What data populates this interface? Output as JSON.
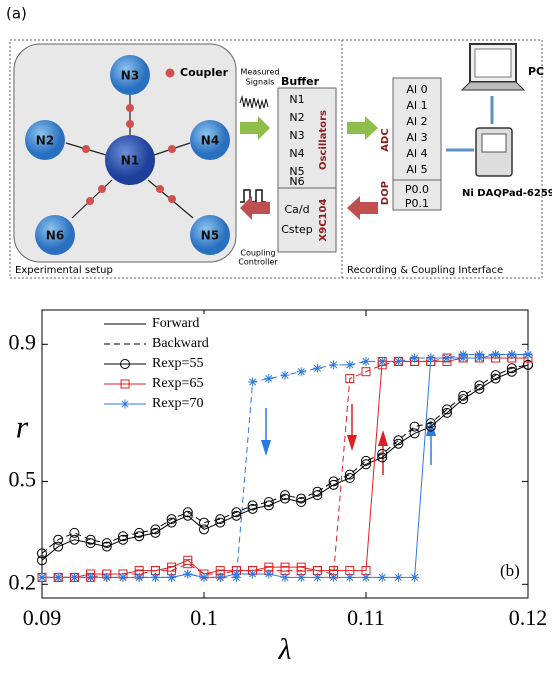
{
  "panel_a": {
    "label": "(a)",
    "nodes": [
      "N1",
      "N2",
      "N3",
      "N4",
      "N5",
      "N6"
    ],
    "coupler": "Coupler",
    "measured_signals": [
      "Measured",
      "Signals"
    ],
    "buffer": "Buffer",
    "buffer_rows": [
      "N1",
      "N2",
      "N3",
      "N4",
      "N5",
      "N6"
    ],
    "oscillators": "Oscillators",
    "controller_rows": [
      "Ca/d",
      "Cstep"
    ],
    "chip": "X9C104",
    "coupling_controller": [
      "Coupling",
      "Controller"
    ],
    "setup_caption": "Experimental setup",
    "adc": "ADC",
    "ai_rows": [
      "AI 0",
      "AI 1",
      "AI 2",
      "AI 3",
      "AI 4",
      "AI 5"
    ],
    "dop": "DOP",
    "p_rows": [
      "P0.0",
      "P0.1"
    ],
    "pc": "PC",
    "daq": "Ni DAQPad-6259",
    "interface_caption": "Recording & Coupling Interface"
  },
  "chart_data": {
    "type": "line",
    "panel_label": "(b)",
    "xlabel": "λ",
    "ylabel": "r",
    "xlim": [
      0.09,
      0.12
    ],
    "xticks": [
      0.09,
      0.1,
      0.11,
      0.12
    ],
    "ylim": [
      0.16,
      1.0
    ],
    "yticks": [
      0.2,
      0.5,
      0.9
    ],
    "x": [
      0.09,
      0.091,
      0.092,
      0.093,
      0.094,
      0.095,
      0.096,
      0.097,
      0.098,
      0.099,
      0.1,
      0.101,
      0.102,
      0.103,
      0.104,
      0.105,
      0.106,
      0.107,
      0.108,
      0.109,
      0.11,
      0.111,
      0.112,
      0.113,
      0.114,
      0.115,
      0.116,
      0.117,
      0.118,
      0.119,
      0.12
    ],
    "line_styles": [
      {
        "name": "Forward",
        "dashed": false
      },
      {
        "name": "Backward",
        "dashed": true
      }
    ],
    "series": [
      {
        "name": "Rexp=55",
        "color": "#000000",
        "marker": "circle",
        "forward": [
          0.27,
          0.31,
          0.33,
          0.32,
          0.31,
          0.33,
          0.34,
          0.35,
          0.38,
          0.4,
          0.36,
          0.38,
          0.4,
          0.42,
          0.43,
          0.45,
          0.44,
          0.46,
          0.49,
          0.51,
          0.55,
          0.57,
          0.61,
          0.64,
          0.66,
          0.7,
          0.74,
          0.77,
          0.8,
          0.82,
          0.84
        ],
        "backward": [
          0.29,
          0.33,
          0.35,
          0.33,
          0.32,
          0.34,
          0.35,
          0.36,
          0.39,
          0.41,
          0.38,
          0.39,
          0.41,
          0.43,
          0.44,
          0.46,
          0.45,
          0.47,
          0.5,
          0.52,
          0.56,
          0.58,
          0.62,
          0.66,
          0.67,
          0.71,
          0.75,
          0.78,
          0.81,
          0.83,
          0.84
        ]
      },
      {
        "name": "Rexp=65",
        "color": "#e02020",
        "marker": "square",
        "forward": [
          0.22,
          0.22,
          0.22,
          0.23,
          0.23,
          0.23,
          0.24,
          0.24,
          0.25,
          0.27,
          0.23,
          0.24,
          0.24,
          0.24,
          0.25,
          0.25,
          0.25,
          0.24,
          0.24,
          0.24,
          0.24,
          0.85,
          0.85,
          0.85,
          0.85,
          0.85,
          0.86,
          0.86,
          0.86,
          0.86,
          0.86
        ],
        "backward": [
          0.22,
          0.22,
          0.22,
          0.22,
          0.23,
          0.23,
          0.23,
          0.24,
          0.24,
          0.26,
          0.23,
          0.23,
          0.24,
          0.24,
          0.24,
          0.24,
          0.24,
          0.24,
          0.23,
          0.8,
          0.82,
          0.84,
          0.85,
          0.85,
          0.85,
          0.86,
          0.86,
          0.86,
          0.86,
          0.86,
          0.86
        ]
      },
      {
        "name": "Rexp=70",
        "color": "#2a7ae2",
        "marker": "star",
        "forward": [
          0.22,
          0.22,
          0.22,
          0.22,
          0.22,
          0.22,
          0.22,
          0.22,
          0.22,
          0.23,
          0.22,
          0.22,
          0.23,
          0.23,
          0.23,
          0.22,
          0.22,
          0.22,
          0.22,
          0.22,
          0.22,
          0.22,
          0.22,
          0.22,
          0.86,
          0.86,
          0.86,
          0.86,
          0.87,
          0.87,
          0.87
        ],
        "backward": [
          0.22,
          0.22,
          0.22,
          0.22,
          0.22,
          0.22,
          0.22,
          0.22,
          0.22,
          0.23,
          0.22,
          0.22,
          0.22,
          0.79,
          0.8,
          0.81,
          0.82,
          0.83,
          0.84,
          0.84,
          0.85,
          0.85,
          0.85,
          0.86,
          0.86,
          0.86,
          0.87,
          0.87,
          0.87,
          0.87,
          0.87
        ]
      }
    ]
  }
}
